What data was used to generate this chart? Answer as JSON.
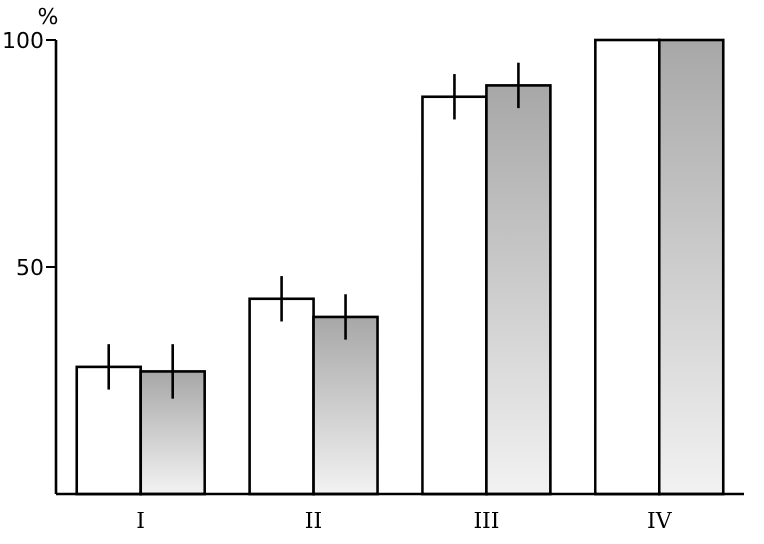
{
  "chart_data": {
    "type": "bar",
    "ylabel": "%",
    "categories": [
      "I",
      "II",
      "III",
      "IV"
    ],
    "series": [
      {
        "color": "#ffffff",
        "values": [
          28,
          43,
          87.5,
          100
        ],
        "errors": [
          5,
          5,
          5,
          null
        ]
      },
      {
        "color": "#a8a8a8",
        "values": [
          27,
          39,
          90,
          100
        ],
        "errors": [
          6,
          5,
          5,
          null
        ]
      }
    ],
    "ylim": [
      0,
      100
    ],
    "yticks": [
      50,
      100
    ],
    "grid": false
  }
}
